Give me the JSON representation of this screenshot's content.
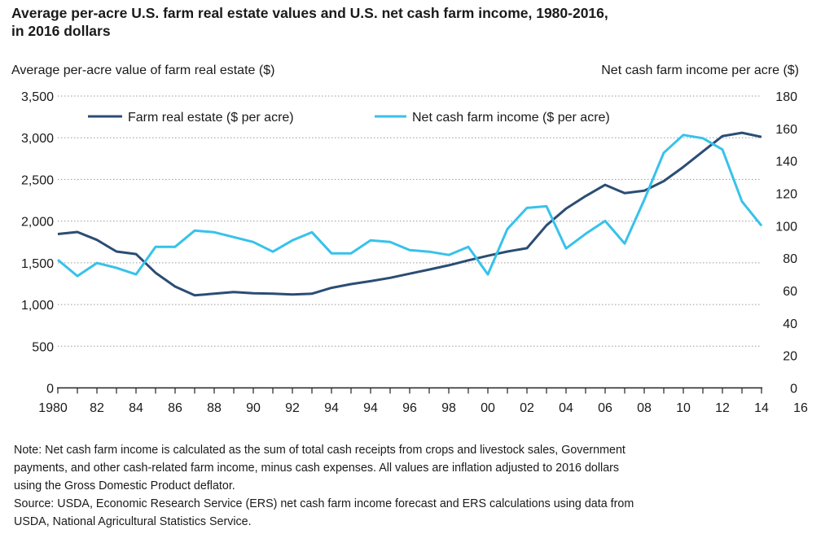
{
  "chart_data": {
    "type": "line",
    "title": "Average per-acre U.S. farm real estate values and U.S. net cash farm income, 1980-2016, in 2016 dollars",
    "title_lines": [
      "Average per-acre U.S. farm real estate values and U.S. net cash farm income, 1980-2016,",
      "in 2016 dollars"
    ],
    "ylabel_left": "Average per-acre value of farm real estate ($)",
    "ylabel_right": "Net cash farm income per acre ($)",
    "ylim_left": [
      0,
      3500
    ],
    "ylim_right": [
      0,
      180
    ],
    "yticks_left": [
      "0",
      "500",
      "1,000",
      "1,500",
      "2,000",
      "2,500",
      "3,000",
      "3,500"
    ],
    "yticks_right": [
      "0",
      "20",
      "40",
      "60",
      "80",
      "100",
      "120",
      "140",
      "160",
      "180"
    ],
    "xticks": [
      "1980",
      "82",
      "84",
      "86",
      "88",
      "90",
      "92",
      "94",
      "94",
      "96",
      "98",
      "00",
      "02",
      "04",
      "06",
      "08",
      "10",
      "12",
      "14",
      "16"
    ],
    "grid": "horizontal dotted",
    "legend_placement": "top-left",
    "x": [
      1980,
      1981,
      1982,
      1983,
      1984,
      1985,
      1986,
      1987,
      1988,
      1989,
      1990,
      1991,
      1992,
      1993,
      1994,
      1995,
      1996,
      1997,
      1998,
      1999,
      2000,
      2001,
      2002,
      2003,
      2004,
      2005,
      2006,
      2007,
      2008,
      2009,
      2010,
      2011,
      2012,
      2013,
      2014,
      2015,
      2016
    ],
    "series": [
      {
        "name": "Farm real estate ($ per acre)",
        "axis": "left",
        "color": "#2b4d74",
        "values": [
          1845,
          1870,
          1775,
          1635,
          1605,
          1380,
          1215,
          1110,
          1130,
          1150,
          1135,
          1130,
          1120,
          1130,
          1200,
          1245,
          1280,
          1320,
          1370,
          1420,
          1470,
          1530,
          1585,
          1635,
          1675,
          1950,
          2150,
          2300,
          2435,
          2335,
          2365,
          2480,
          2650,
          2835,
          3020,
          3060,
          3010
        ]
      },
      {
        "name": "Net cash farm income ($ per acre)",
        "axis": "right",
        "color": "#37c2ea",
        "values": [
          79,
          69,
          77,
          74,
          70,
          87,
          87,
          97,
          96,
          93,
          90,
          84,
          91,
          96,
          83,
          83,
          91,
          90,
          85,
          84,
          82,
          87,
          70,
          98,
          111,
          112,
          86,
          95,
          103,
          89,
          116,
          145,
          156,
          154,
          147,
          115,
          100
        ]
      }
    ]
  },
  "notes": [
    "Note: Net cash farm income is calculated as the sum of total cash receipts from crops and livestock sales, Government",
    "payments, and other cash-related farm income, minus cash expenses. All values are inflation adjusted to 2016 dollars",
    "using the Gross Domestic Product deflator.",
    "Source: USDA, Economic Research Service (ERS) net cash farm income forecast and ERS calculations using data from",
    "USDA, National Agricultural Statistics Service."
  ]
}
